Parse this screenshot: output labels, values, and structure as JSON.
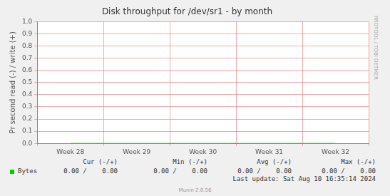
{
  "chart_data": {
    "type": "line",
    "title": "Disk throughput for /dev/sr1 - by month",
    "y_label": "Pr second read (-) / write (+)",
    "categories": [
      "Week 28",
      "Week 29",
      "Week 30",
      "Week 31",
      "Week 32"
    ],
    "series": [
      {
        "name": "Bytes",
        "color": "#00cc00",
        "values": [
          0,
          0,
          0,
          0,
          0
        ],
        "stats": [
          "0.00 /    0.00",
          "0.00 /    0.00",
          "0.00 /    0.00",
          "0.00 /    0.00"
        ]
      }
    ],
    "stats_columns": [
      "Cur (-/+)",
      "Min (-/+)",
      "Avg (-/+)",
      "Max (-/+)"
    ],
    "ylim": [
      0,
      1
    ],
    "yticks": [
      {
        "value": 0,
        "label": "0.0"
      },
      {
        "value": 0.1,
        "label": "0.1"
      },
      {
        "value": 0.2,
        "label": "0.2"
      },
      {
        "value": 0.3,
        "label": "0.3"
      },
      {
        "value": 0.4,
        "label": "0.4"
      },
      {
        "value": 0.5,
        "label": "0.5"
      },
      {
        "value": 0.6,
        "label": "0.6"
      },
      {
        "value": 0.7,
        "label": "0.7"
      },
      {
        "value": 0.8,
        "label": "0.8"
      },
      {
        "value": 0.9,
        "label": "0.9"
      },
      {
        "value": 1,
        "label": "1.0"
      }
    ],
    "grid": true,
    "last_update": "Last update: Sat Aug 10 16:35:14 2024",
    "version": "Munin 2.0.56",
    "watermark": "RRDTOOL / TOBI OETIKER"
  }
}
